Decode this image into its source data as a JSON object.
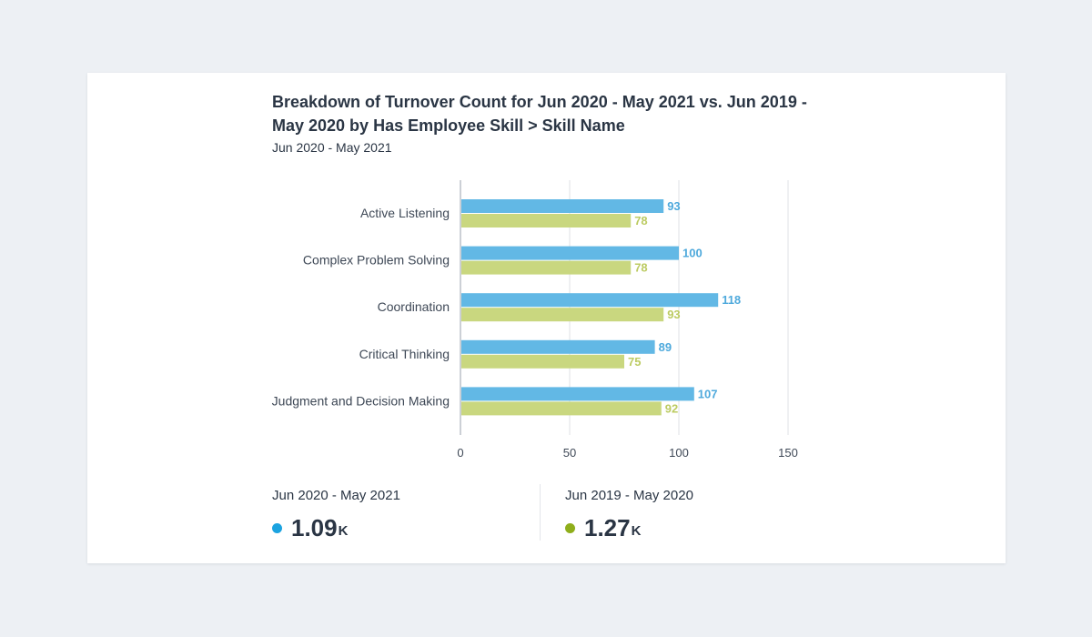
{
  "header": {
    "title": "Breakdown of Turnover Count for Jun 2020 - May 2021 vs. Jun 2019 - May 2020 by Has Employee Skill > Skill Name",
    "subtitle": "Jun 2020 - May 2021"
  },
  "summary": [
    {
      "label": "Jun 2020 - May 2021",
      "value": "1.09",
      "unit": "K",
      "color": "#1ba3e0"
    },
    {
      "label": "Jun 2019 - May 2020",
      "value": "1.27",
      "unit": "K",
      "color": "#8fae1b"
    }
  ],
  "chart_data": {
    "type": "bar",
    "orientation": "horizontal",
    "title": "Breakdown of Turnover Count for Jun 2020 - May 2021 vs. Jun 2019 - May 2020 by Has Employee Skill > Skill Name",
    "subtitle": "Jun 2020 - May 2021",
    "categories": [
      "Active Listening",
      "Complex Problem Solving",
      "Coordination",
      "Critical Thinking",
      "Judgment and Decision Making"
    ],
    "series": [
      {
        "name": "Jun 2020 - May 2021",
        "values": [
          93,
          100,
          118,
          89,
          107
        ],
        "color": "#62b8e5",
        "label_color": "#4ea9dc"
      },
      {
        "name": "Jun 2019 - May 2020",
        "values": [
          78,
          78,
          93,
          75,
          92
        ],
        "color": "#c9d77f",
        "label_color": "#bccb62"
      }
    ],
    "xlim": [
      0,
      150
    ],
    "xticks": [
      0,
      50,
      100,
      150
    ],
    "grid": true,
    "xlabel": "",
    "ylabel": ""
  }
}
